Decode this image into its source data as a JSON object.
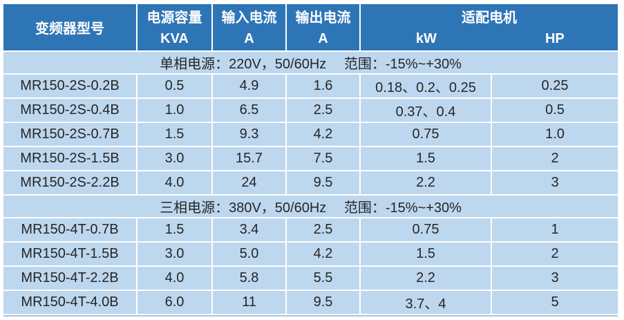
{
  "colors": {
    "header_bg": "#2E75B6",
    "header_text": "#FFFFFF",
    "row_bg": "#BDD7EE",
    "body_text": "#262626",
    "grid_line": "#FFFFFF",
    "bottom_rule": "#A8C4DE"
  },
  "table": {
    "header": {
      "model": "变频器型号",
      "capacity_l1": "电源容量",
      "capacity_l2": "KVA",
      "input_l1": "输入电流",
      "input_l2": "A",
      "output_l1": "输出电流",
      "output_l2": "A",
      "motor": "适配电机",
      "motor_kw": "kW",
      "motor_hp": "HP"
    },
    "sections": [
      {
        "title": "单相电源：220V，50/60Hz　 范围：-15%~+30%",
        "rows": [
          [
            "MR150-2S-0.2B",
            "0.5",
            "4.9",
            "1.6",
            "0.18、0.2、0.25",
            "0.25"
          ],
          [
            "MR150-2S-0.4B",
            "1.0",
            "6.5",
            "2.5",
            "0.37、0.4",
            "0.5"
          ],
          [
            "MR150-2S-0.7B",
            "1.5",
            "9.3",
            "4.2",
            "0.75",
            "1.0"
          ],
          [
            "MR150-2S-1.5B",
            "3.0",
            "15.7",
            "7.5",
            "1.5",
            "2"
          ],
          [
            "MR150-2S-2.2B",
            "4.0",
            "24",
            "9.5",
            "2.2",
            "3"
          ]
        ]
      },
      {
        "title": "三相电源：380V，50/60Hz　 范围：-15%~+30%",
        "rows": [
          [
            "MR150-4T-0.7B",
            "1.5",
            "3.4",
            "2.5",
            "0.75",
            "1"
          ],
          [
            "MR150-4T-1.5B",
            "3.0",
            "5.0",
            "4.2",
            "1.5",
            "2"
          ],
          [
            "MR150-4T-2.2B",
            "4.0",
            "5.8",
            "5.5",
            "2.2",
            "3"
          ],
          [
            "MR150-4T-4.0B",
            "6.0",
            "11",
            "9.5",
            "3.7、4",
            "5"
          ]
        ]
      }
    ]
  }
}
